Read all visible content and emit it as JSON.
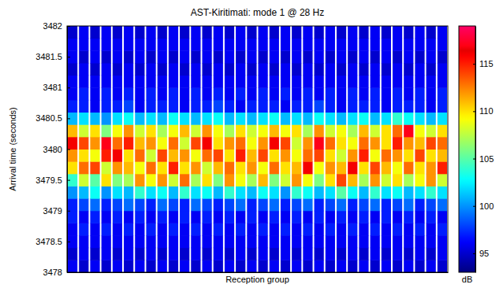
{
  "chart_data": {
    "type": "heatmap",
    "title": "AST-Kiritimati:  mode 1 @ 28 Hz",
    "x_label": "Reception group",
    "y_label": "Arrival time (seconds)",
    "tick_labels": "y",
    "categories": [
      null,
      null,
      null,
      null,
      null,
      null,
      null,
      null,
      null,
      null,
      null,
      null,
      null,
      null,
      null,
      null,
      null,
      null,
      null,
      null,
      null,
      null,
      null,
      null,
      null,
      null,
      null,
      null,
      null,
      null,
      null,
      null,
      null,
      null
    ],
    "y": [
      3478.1,
      3478.3,
      3478.5,
      3478.7,
      3478.9,
      3479.1,
      3479.3,
      3479.5,
      3479.7,
      3479.9,
      3480.1,
      3480.3,
      3480.5,
      3480.7,
      3480.9,
      3481.1,
      3481.3,
      3481.5,
      3481.7,
      3481.9
    ],
    "ylim": [
      3478,
      3482
    ],
    "yticks": [
      3478,
      3478.5,
      3479,
      3479.5,
      3480,
      3480.5,
      3481,
      3481.5,
      3482
    ],
    "z": [
      [
        96,
        95,
        96,
        96,
        97,
        97,
        100,
        104,
        110,
        112,
        116,
        111,
        101,
        97,
        96,
        96,
        95,
        96,
        96,
        95
      ],
      [
        95,
        96,
        96,
        97,
        96,
        98,
        101,
        108,
        113,
        110,
        114,
        108,
        102,
        97,
        97,
        96,
        96,
        95,
        96,
        96
      ],
      [
        96,
        95,
        96,
        96,
        97,
        99,
        103,
        105,
        114,
        109,
        112,
        110,
        101,
        96,
        96,
        96,
        95,
        96,
        96,
        95
      ],
      [
        95,
        96,
        96,
        97,
        96,
        97,
        100,
        110,
        108,
        115,
        117,
        106,
        100,
        97,
        97,
        96,
        96,
        95,
        96,
        96
      ],
      [
        96,
        95,
        96,
        96,
        97,
        98,
        102,
        106,
        112,
        116,
        113,
        109,
        102,
        97,
        96,
        96,
        95,
        96,
        96,
        95
      ],
      [
        95,
        96,
        96,
        97,
        96,
        99,
        101,
        107,
        111,
        110,
        115,
        112,
        103,
        98,
        97,
        96,
        96,
        95,
        96,
        96
      ],
      [
        96,
        95,
        96,
        96,
        97,
        98,
        104,
        112,
        109,
        113,
        111,
        108,
        101,
        96,
        96,
        96,
        95,
        96,
        96,
        95
      ],
      [
        95,
        96,
        96,
        97,
        96,
        97,
        102,
        109,
        113,
        108,
        112,
        110,
        102,
        97,
        97,
        96,
        96,
        95,
        96,
        96
      ],
      [
        96,
        95,
        96,
        96,
        97,
        99,
        103,
        112,
        110,
        114,
        109,
        107,
        101,
        97,
        96,
        96,
        95,
        96,
        96,
        95
      ],
      [
        95,
        96,
        96,
        97,
        96,
        98,
        101,
        108,
        115,
        111,
        113,
        109,
        103,
        97,
        97,
        96,
        96,
        95,
        96,
        96
      ],
      [
        96,
        95,
        96,
        96,
        97,
        97,
        104,
        113,
        110,
        112,
        108,
        111,
        102,
        96,
        96,
        96,
        95,
        96,
        96,
        95
      ],
      [
        95,
        96,
        96,
        97,
        96,
        99,
        102,
        107,
        112,
        109,
        114,
        108,
        101,
        97,
        97,
        96,
        96,
        95,
        96,
        96
      ],
      [
        96,
        95,
        96,
        96,
        97,
        98,
        103,
        110,
        108,
        113,
        116,
        112,
        102,
        97,
        96,
        96,
        95,
        96,
        96,
        95
      ],
      [
        95,
        96,
        96,
        97,
        96,
        97,
        101,
        106,
        111,
        114,
        110,
        109,
        103,
        98,
        97,
        96,
        96,
        95,
        96,
        96
      ],
      [
        96,
        95,
        96,
        96,
        97,
        98,
        104,
        112,
        113,
        110,
        112,
        107,
        101,
        97,
        96,
        96,
        95,
        96,
        96,
        95
      ],
      [
        95,
        96,
        96,
        97,
        96,
        99,
        102,
        109,
        110,
        115,
        113,
        110,
        102,
        96,
        97,
        96,
        96,
        95,
        96,
        96
      ],
      [
        96,
        95,
        96,
        96,
        97,
        97,
        101,
        107,
        112,
        111,
        109,
        108,
        101,
        97,
        96,
        96,
        95,
        96,
        96,
        95
      ],
      [
        95,
        96,
        96,
        97,
        96,
        98,
        103,
        111,
        109,
        114,
        112,
        109,
        102,
        97,
        97,
        96,
        96,
        95,
        96,
        96
      ],
      [
        96,
        95,
        96,
        96,
        97,
        99,
        102,
        106,
        113,
        110,
        116,
        111,
        103,
        97,
        96,
        96,
        95,
        96,
        96,
        95
      ],
      [
        95,
        96,
        96,
        97,
        96,
        97,
        100,
        108,
        110,
        112,
        114,
        109,
        101,
        96,
        97,
        96,
        96,
        95,
        96,
        96
      ],
      [
        96,
        95,
        96,
        96,
        97,
        98,
        104,
        112,
        111,
        109,
        108,
        110,
        102,
        97,
        96,
        96,
        95,
        96,
        96,
        95
      ],
      [
        95,
        96,
        96,
        97,
        96,
        99,
        103,
        109,
        116,
        113,
        112,
        107,
        101,
        97,
        97,
        96,
        96,
        95,
        96,
        96
      ],
      [
        96,
        95,
        96,
        96,
        97,
        97,
        101,
        106,
        109,
        114,
        117,
        112,
        103,
        98,
        96,
        96,
        95,
        96,
        96,
        95
      ],
      [
        95,
        96,
        96,
        97,
        96,
        98,
        102,
        110,
        112,
        110,
        113,
        108,
        102,
        97,
        97,
        96,
        96,
        95,
        96,
        96
      ],
      [
        96,
        95,
        96,
        96,
        97,
        99,
        105,
        114,
        111,
        108,
        110,
        109,
        101,
        96,
        96,
        96,
        95,
        96,
        96,
        95
      ],
      [
        95,
        96,
        96,
        97,
        96,
        97,
        103,
        111,
        116,
        112,
        109,
        107,
        102,
        97,
        97,
        96,
        96,
        95,
        96,
        96
      ],
      [
        96,
        95,
        96,
        96,
        97,
        98,
        101,
        107,
        110,
        115,
        113,
        111,
        103,
        97,
        96,
        96,
        95,
        96,
        96,
        95
      ],
      [
        95,
        96,
        96,
        97,
        96,
        99,
        104,
        112,
        114,
        109,
        112,
        108,
        101,
        97,
        97,
        96,
        96,
        95,
        96,
        96
      ],
      [
        96,
        95,
        96,
        96,
        97,
        97,
        102,
        108,
        111,
        113,
        110,
        110,
        102,
        96,
        96,
        96,
        95,
        96,
        96,
        95
      ],
      [
        95,
        96,
        96,
        97,
        96,
        98,
        103,
        110,
        109,
        112,
        115,
        113,
        104,
        97,
        97,
        96,
        96,
        95,
        96,
        96
      ],
      [
        96,
        95,
        96,
        96,
        97,
        99,
        101,
        107,
        113,
        110,
        112,
        117,
        103,
        97,
        96,
        96,
        95,
        96,
        96,
        95
      ],
      [
        95,
        96,
        96,
        97,
        96,
        97,
        102,
        109,
        110,
        114,
        111,
        109,
        102,
        97,
        97,
        96,
        96,
        95,
        96,
        96
      ],
      [
        96,
        95,
        96,
        96,
        97,
        98,
        104,
        112,
        112,
        110,
        114,
        108,
        101,
        96,
        96,
        96,
        95,
        96,
        96,
        95
      ],
      [
        95,
        96,
        96,
        97,
        96,
        99,
        102,
        108,
        115,
        111,
        113,
        110,
        102,
        97,
        97,
        96,
        96,
        95,
        96,
        96
      ]
    ],
    "colorbar": {
      "label": "dB",
      "range": [
        93,
        119
      ],
      "ticks": [
        95,
        100,
        105,
        110,
        115
      ]
    }
  }
}
